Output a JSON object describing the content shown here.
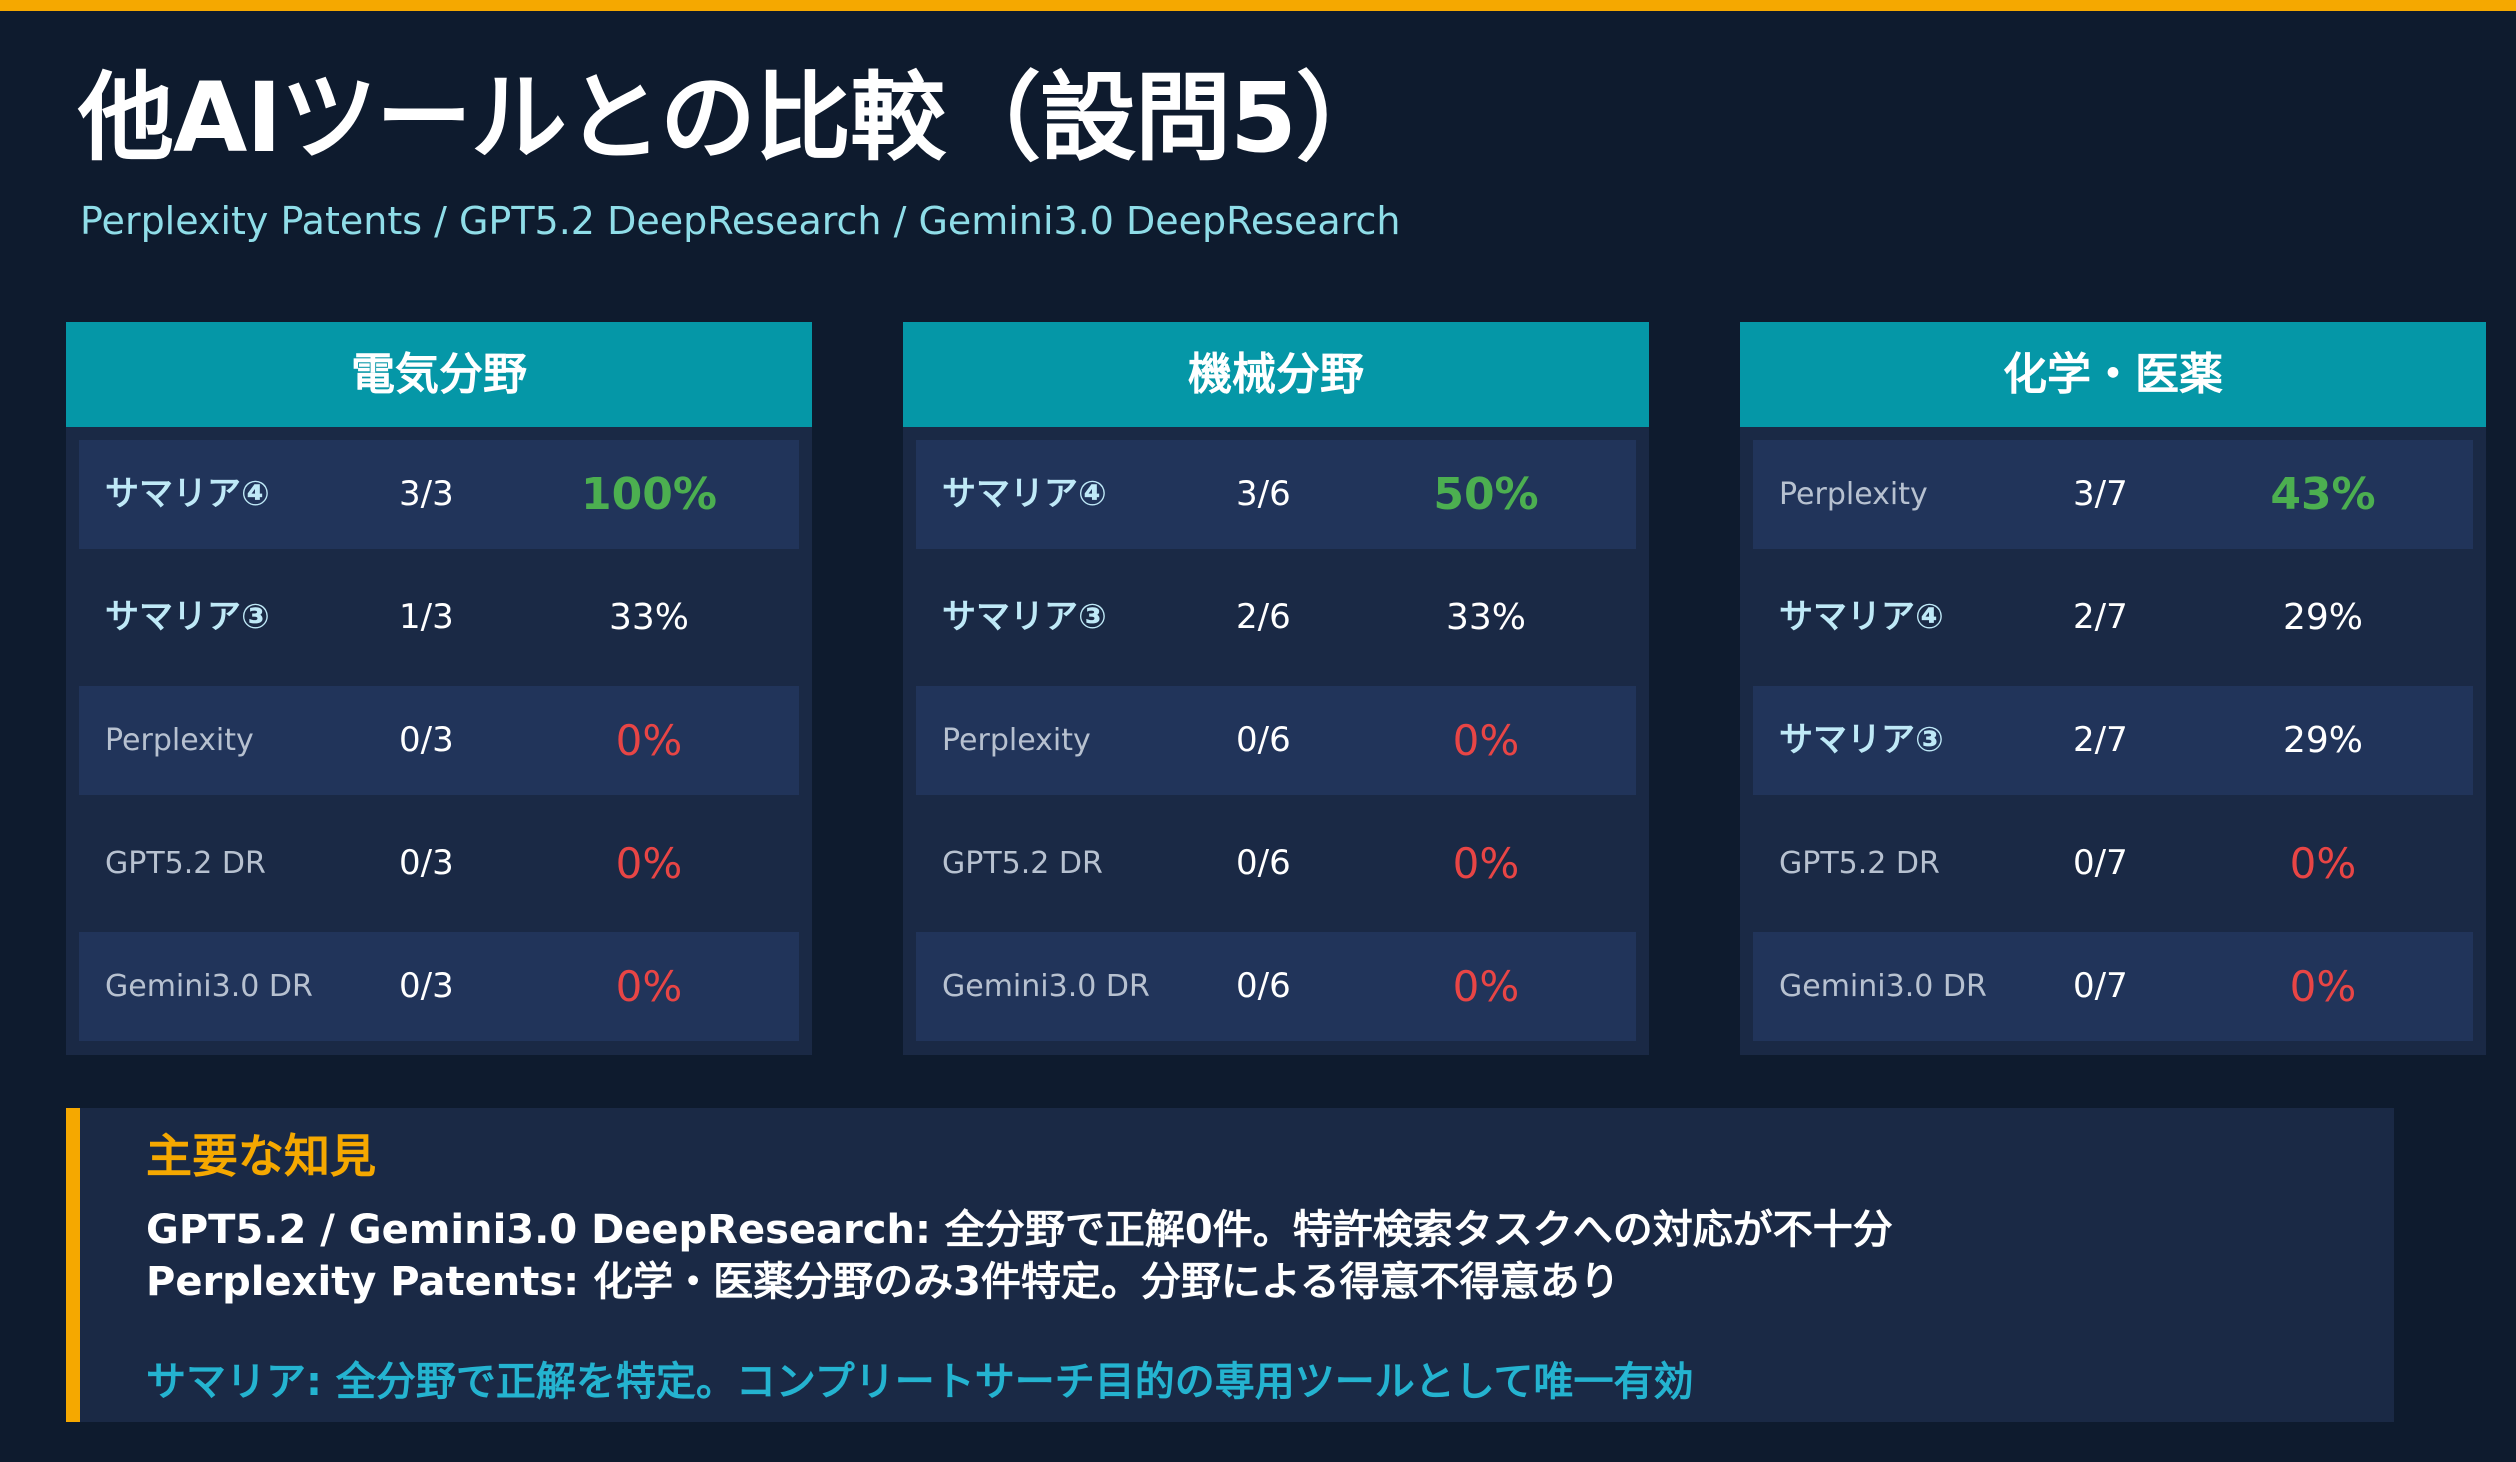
{
  "title": "他AIツールとの比較（設問5）",
  "subtitle": "Perplexity Patents / GPT5.2 DeepResearch / Gemini3.0 DeepResearch",
  "panels": [
    {
      "header": "電気分野",
      "rows": [
        {
          "name": "サマリア④",
          "fraction": "3/3",
          "percent": "100%",
          "style": "best",
          "highlight": true
        },
        {
          "name": "サマリア③",
          "fraction": "1/3",
          "percent": "33%",
          "style": "normal",
          "highlight": true
        },
        {
          "name": "Perplexity",
          "fraction": "0/3",
          "percent": "0%",
          "style": "zero",
          "highlight": false
        },
        {
          "name": "GPT5.2 DR",
          "fraction": "0/3",
          "percent": "0%",
          "style": "zero",
          "highlight": false
        },
        {
          "name": "Gemini3.0 DR",
          "fraction": "0/3",
          "percent": "0%",
          "style": "zero",
          "highlight": false
        }
      ]
    },
    {
      "header": "機械分野",
      "rows": [
        {
          "name": "サマリア④",
          "fraction": "3/6",
          "percent": "50%",
          "style": "best",
          "highlight": true
        },
        {
          "name": "サマリア③",
          "fraction": "2/6",
          "percent": "33%",
          "style": "normal",
          "highlight": true
        },
        {
          "name": "Perplexity",
          "fraction": "0/6",
          "percent": "0%",
          "style": "zero",
          "highlight": false
        },
        {
          "name": "GPT5.2 DR",
          "fraction": "0/6",
          "percent": "0%",
          "style": "zero",
          "highlight": false
        },
        {
          "name": "Gemini3.0 DR",
          "fraction": "0/6",
          "percent": "0%",
          "style": "zero",
          "highlight": false
        }
      ]
    },
    {
      "header": "化学・医薬",
      "rows": [
        {
          "name": "Perplexity",
          "fraction": "3/7",
          "percent": "43%",
          "style": "best",
          "highlight": false
        },
        {
          "name": "サマリア④",
          "fraction": "2/7",
          "percent": "29%",
          "style": "normal",
          "highlight": true
        },
        {
          "name": "サマリア③",
          "fraction": "2/7",
          "percent": "29%",
          "style": "normal",
          "highlight": true
        },
        {
          "name": "GPT5.2 DR",
          "fraction": "0/7",
          "percent": "0%",
          "style": "zero",
          "highlight": false
        },
        {
          "name": "Gemini3.0 DR",
          "fraction": "0/7",
          "percent": "0%",
          "style": "zero",
          "highlight": false
        }
      ]
    }
  ],
  "insights": {
    "title": "主要な知見",
    "line1": "GPT5.2 / Gemini3.0 DeepResearch: 全分野で正解0件。特許検索タスクへの対応が不十分",
    "line2": "Perplexity Patents: 化学・医薬分野のみ3件特定。分野による得意不得意あり",
    "line3": "サマリア: 全分野で正解を特定。コンプリートサーチ目的の専用ツールとして唯一有効"
  },
  "colors": {
    "background": "#0e1b2e",
    "accent": "#f5a800",
    "header_teal": "#0597a7",
    "best": "#4caf50",
    "zero": "#e84545",
    "conclusion": "#24b3d0"
  }
}
